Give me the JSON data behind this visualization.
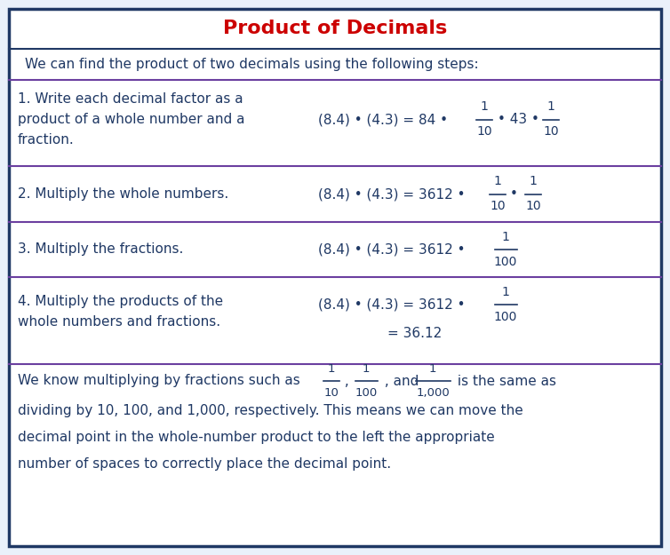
{
  "title": "Product of Decimals",
  "title_color": "#CC0000",
  "bg_color": "#FFFFFF",
  "outer_bg": "#EAF1FA",
  "border_color": "#1F3864",
  "divider_color": "#6B3FA0",
  "text_color": "#1F3864",
  "figsize": [
    7.54,
    6.25
  ],
  "dpi": 100,
  "intro": "We can find the product of two decimals using the following steps:",
  "step1_left": "1. Write each decimal factor as a\nproduct of a whole number and a\nfraction.",
  "step2_left": "2. Multiply the whole numbers.",
  "step3_left": "3. Multiply the fractions.",
  "step4_left": "4. Multiply the products of the\nwhole numbers and fractions.",
  "footer_lines": [
    "dividing by 10, 100, and 1,000, respectively. This means we can move the",
    "decimal point in the whole-number product to the left the appropriate",
    "number of spaces to correctly place the decimal point."
  ]
}
